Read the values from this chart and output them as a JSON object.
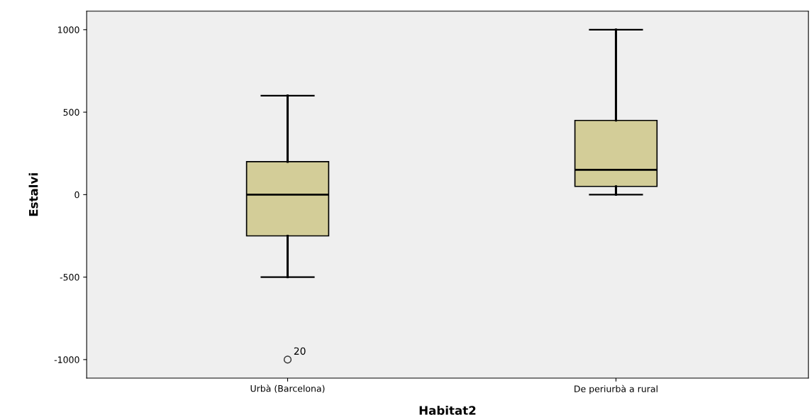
{
  "chart_data": {
    "type": "box",
    "xlabel": "Habitat2",
    "ylabel": "Estalvi",
    "categories": [
      "Urbà (Barcelona)",
      "De periurbà a rural"
    ],
    "color": "#d3cd98",
    "boxes": [
      {
        "low": -500,
        "q1": -250,
        "median": 0,
        "q3": 200,
        "high": 600,
        "outliers": [
          -1000
        ]
      },
      {
        "low": 0,
        "q1": 50,
        "median": 150,
        "q3": 450,
        "high": 1000
      }
    ],
    "ylim": [
      -1112,
      1112
    ],
    "yticks": [
      -1000,
      -500,
      0,
      500,
      1000
    ],
    "annotations": [
      "20"
    ],
    "grid": false
  }
}
